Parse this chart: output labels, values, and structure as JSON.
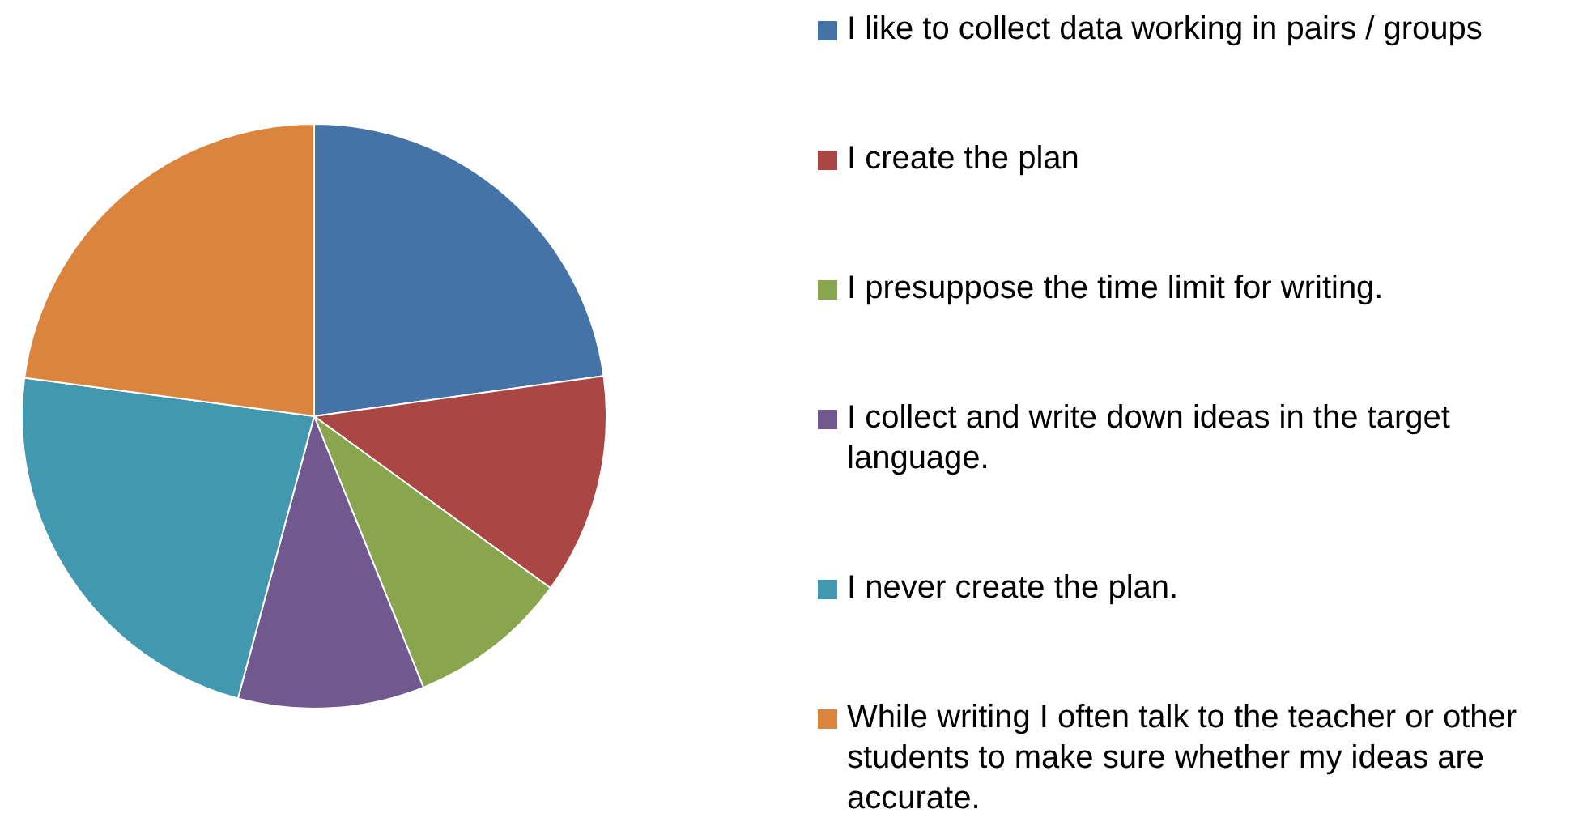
{
  "chart_data": {
    "type": "pie",
    "categories": [
      "I like to collect data working in pairs / groups",
      "I create the plan",
      "I presuppose the time limit for writing.",
      "I collect and write down ideas in the target language.",
      "I never create the plan.",
      "While writing I often talk to the teacher or other students to make sure whether my ideas are accurate."
    ],
    "values": [
      22.8,
      12.2,
      8.9,
      10.3,
      22.9,
      22.9
    ],
    "colors": [
      "#4572a7",
      "#aa4643",
      "#89a54e",
      "#71588f",
      "#4198af",
      "#db843d"
    ],
    "legend": "right"
  }
}
